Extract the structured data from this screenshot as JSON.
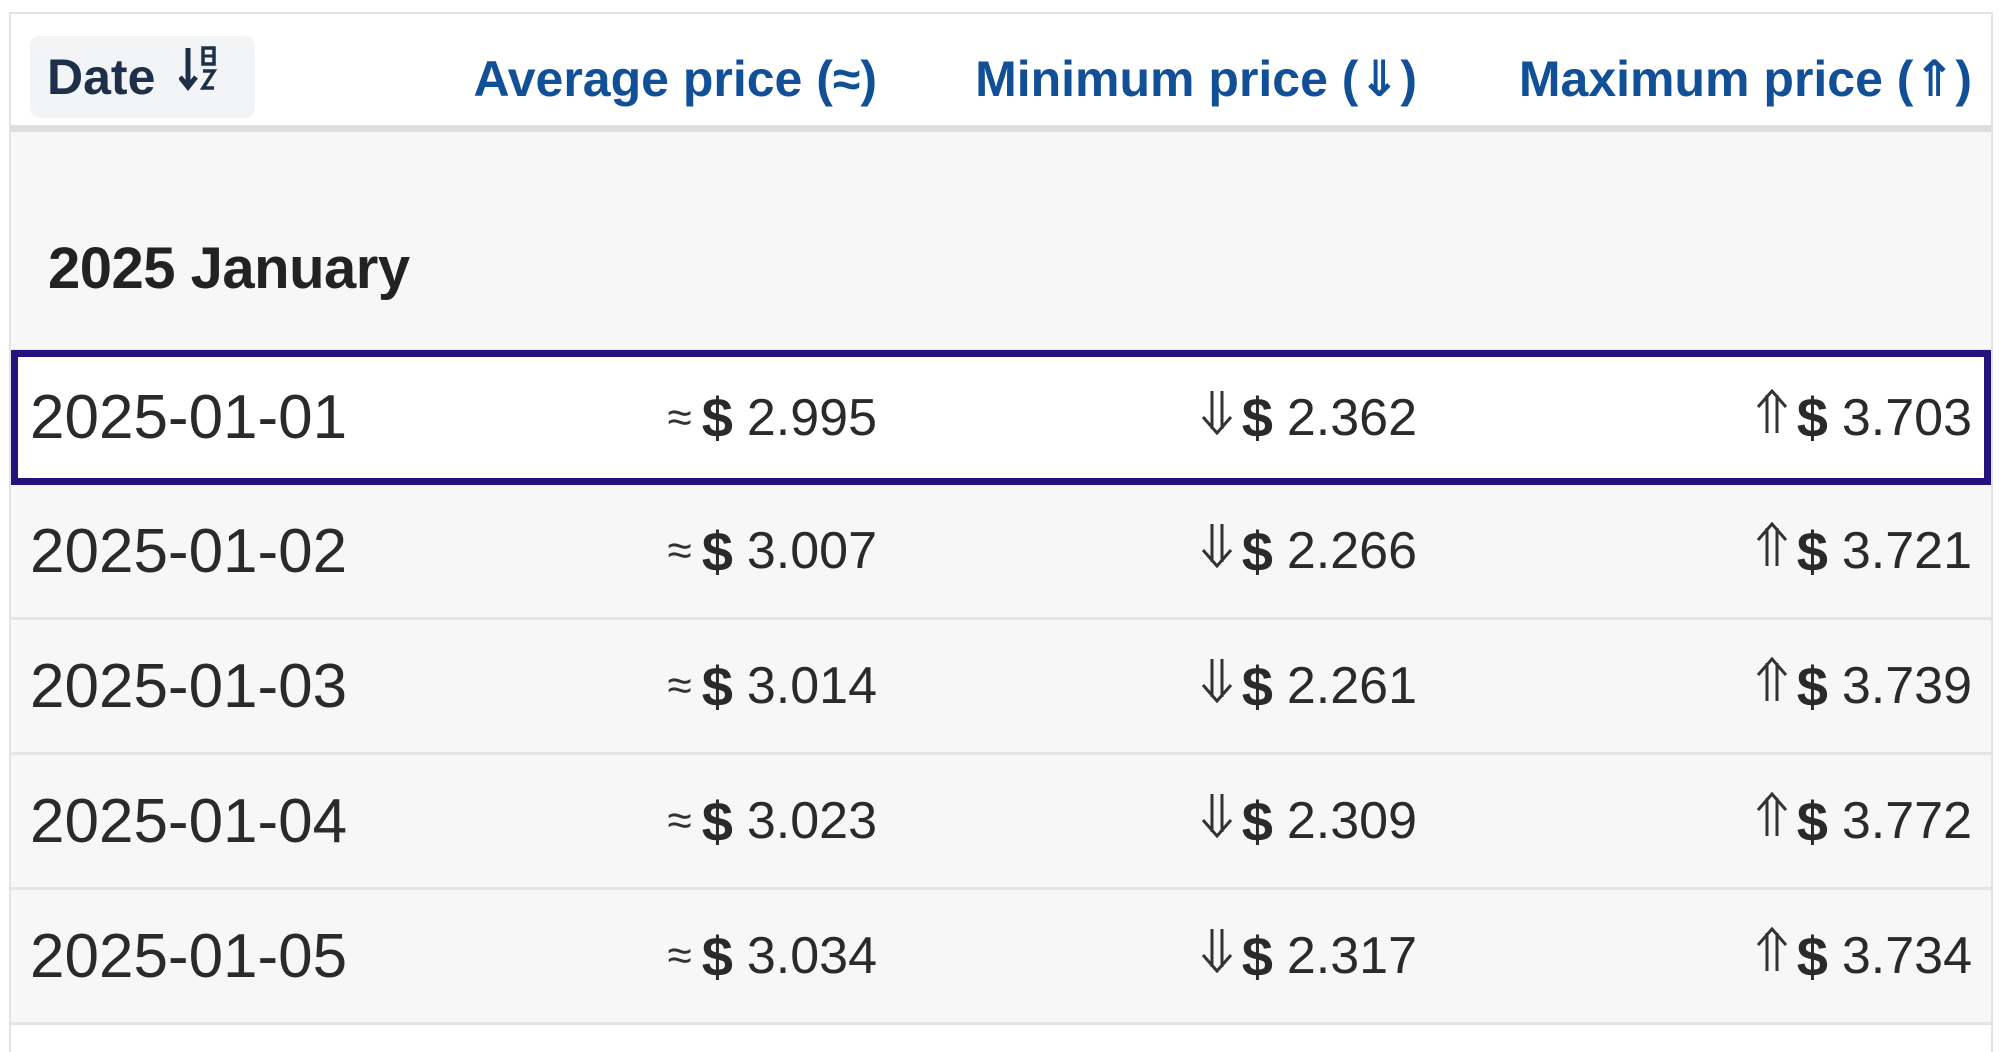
{
  "table": {
    "headers": {
      "date": "Date",
      "average": "Average price (≈)",
      "minimum": "Minimum price (⇓)",
      "maximum": "Maximum price (⇑)"
    },
    "group_label": "2025 January",
    "currency_symbol": "$",
    "avg_symbol": "≈",
    "rows": [
      {
        "date": "2025-01-01",
        "avg": "2.995",
        "min": "2.362",
        "max": "3.703",
        "selected": true
      },
      {
        "date": "2025-01-02",
        "avg": "3.007",
        "min": "2.266",
        "max": "3.721",
        "selected": false
      },
      {
        "date": "2025-01-03",
        "avg": "3.014",
        "min": "2.261",
        "max": "3.739",
        "selected": false
      },
      {
        "date": "2025-01-04",
        "avg": "3.023",
        "min": "2.309",
        "max": "3.772",
        "selected": false
      },
      {
        "date": "2025-01-05",
        "avg": "3.034",
        "min": "2.317",
        "max": "3.734",
        "selected": false
      }
    ]
  },
  "colors": {
    "header_link": "#114f97",
    "date_header": "#1e2f4a",
    "selection_outline": "#23137a",
    "row_background": "#f7f7f7"
  },
  "icons": {
    "date_sort": "sort-descending-az-icon",
    "min_arrow": "double-arrow-down-icon",
    "max_arrow": "double-arrow-up-icon"
  }
}
